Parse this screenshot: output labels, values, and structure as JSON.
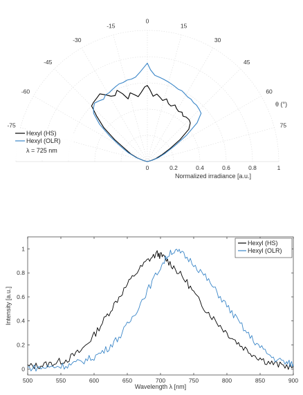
{
  "chart_data": [
    {
      "type": "polar",
      "theta_label": "θ (°)",
      "r_label": "Normalized irradiance [a.u.]",
      "theta_ticks": [
        -75,
        -60,
        -45,
        -30,
        -15,
        0,
        15,
        30,
        45,
        60,
        75
      ],
      "r_ticks": [
        0,
        0.2,
        0.4,
        0.6,
        0.8,
        1
      ],
      "r_tick_labels": [
        "0",
        "0.2",
        "0.4",
        "0.6",
        "0.8",
        "1"
      ],
      "theta_range": [
        -90,
        90
      ],
      "r_range": [
        0,
        1
      ],
      "grid": true,
      "legend_position": "bottom-left",
      "legend_note": "λ = 725 nm",
      "series": [
        {
          "name": "Hexyl (HS)",
          "color": "#000000",
          "theta": [
            -80,
            -75,
            -70,
            -65,
            -60,
            -56,
            -52,
            -48,
            -45,
            -42,
            -38,
            -35,
            -32,
            -29,
            -26,
            -23,
            -20,
            -17,
            -14,
            -11,
            -8,
            -5,
            -2,
            0,
            2,
            5,
            8,
            11,
            14,
            17,
            20,
            23,
            26,
            29,
            32,
            35,
            38,
            41,
            45,
            48,
            52,
            56,
            60,
            65,
            70,
            75,
            80
          ],
          "r": [
            0.0,
            0.03,
            0.08,
            0.14,
            0.2,
            0.3,
            0.42,
            0.52,
            0.6,
            0.61,
            0.62,
            0.63,
            0.6,
            0.57,
            0.56,
            0.59,
            0.55,
            0.5,
            0.54,
            0.52,
            0.5,
            0.53,
            0.57,
            0.58,
            0.55,
            0.5,
            0.52,
            0.5,
            0.48,
            0.5,
            0.47,
            0.46,
            0.48,
            0.46,
            0.45,
            0.46,
            0.44,
            0.45,
            0.45,
            0.44,
            0.4,
            0.3,
            0.2,
            0.12,
            0.07,
            0.03,
            0.0
          ]
        },
        {
          "name": "Hexyl (OLR)",
          "color": "#3a86c8",
          "theta": [
            -80,
            -75,
            -70,
            -65,
            -60,
            -56,
            -52,
            -48,
            -45,
            -42,
            -38,
            -35,
            -32,
            -29,
            -26,
            -23,
            -20,
            -17,
            -14,
            -11,
            -8,
            -5,
            -2,
            0,
            2,
            5,
            8,
            11,
            14,
            17,
            20,
            23,
            26,
            29,
            32,
            35,
            38,
            41,
            45,
            48,
            52,
            56,
            60,
            65,
            70,
            75,
            80
          ],
          "r": [
            0.0,
            0.03,
            0.09,
            0.16,
            0.24,
            0.34,
            0.46,
            0.55,
            0.58,
            0.6,
            0.59,
            0.58,
            0.6,
            0.6,
            0.61,
            0.62,
            0.63,
            0.63,
            0.64,
            0.64,
            0.65,
            0.68,
            0.72,
            0.75,
            0.7,
            0.66,
            0.65,
            0.64,
            0.63,
            0.62,
            0.61,
            0.6,
            0.6,
            0.59,
            0.58,
            0.58,
            0.57,
            0.57,
            0.56,
            0.55,
            0.48,
            0.36,
            0.24,
            0.15,
            0.09,
            0.04,
            0.0
          ]
        }
      ]
    },
    {
      "type": "line",
      "xlabel": "Wavelength λ [nm]",
      "ylabel": "Intensity [a.u.]",
      "xlim": [
        500,
        900
      ],
      "ylim": [
        -0.05,
        1.1
      ],
      "xticks": [
        500,
        550,
        600,
        650,
        700,
        750,
        800,
        850,
        900
      ],
      "yticks": [
        0,
        0.2,
        0.4,
        0.6,
        0.8,
        1
      ],
      "ytick_labels": [
        "0",
        "0.2",
        "0.4",
        "0.6",
        "0.8",
        "1"
      ],
      "grid": false,
      "legend_position": "top-right",
      "series": [
        {
          "name": "Hexyl (HS)",
          "color": "#000000",
          "x": [
            500,
            520,
            540,
            560,
            580,
            600,
            620,
            640,
            660,
            680,
            695,
            705,
            720,
            740,
            760,
            780,
            800,
            820,
            840,
            860,
            880,
            900
          ],
          "y": [
            0.02,
            0.03,
            0.05,
            0.08,
            0.15,
            0.28,
            0.45,
            0.62,
            0.78,
            0.9,
            0.96,
            0.93,
            0.85,
            0.72,
            0.55,
            0.42,
            0.3,
            0.2,
            0.12,
            0.06,
            0.03,
            0.02
          ]
        },
        {
          "name": "Hexyl (OLR)",
          "color": "#3a86c8",
          "x": [
            500,
            520,
            540,
            560,
            580,
            600,
            620,
            640,
            660,
            680,
            700,
            715,
            730,
            750,
            770,
            790,
            810,
            830,
            850,
            870,
            890,
            900
          ],
          "y": [
            0.01,
            0.01,
            0.02,
            0.03,
            0.06,
            0.1,
            0.17,
            0.28,
            0.45,
            0.65,
            0.85,
            0.98,
            0.97,
            0.88,
            0.75,
            0.6,
            0.45,
            0.3,
            0.18,
            0.09,
            0.05,
            0.04
          ]
        }
      ]
    }
  ]
}
